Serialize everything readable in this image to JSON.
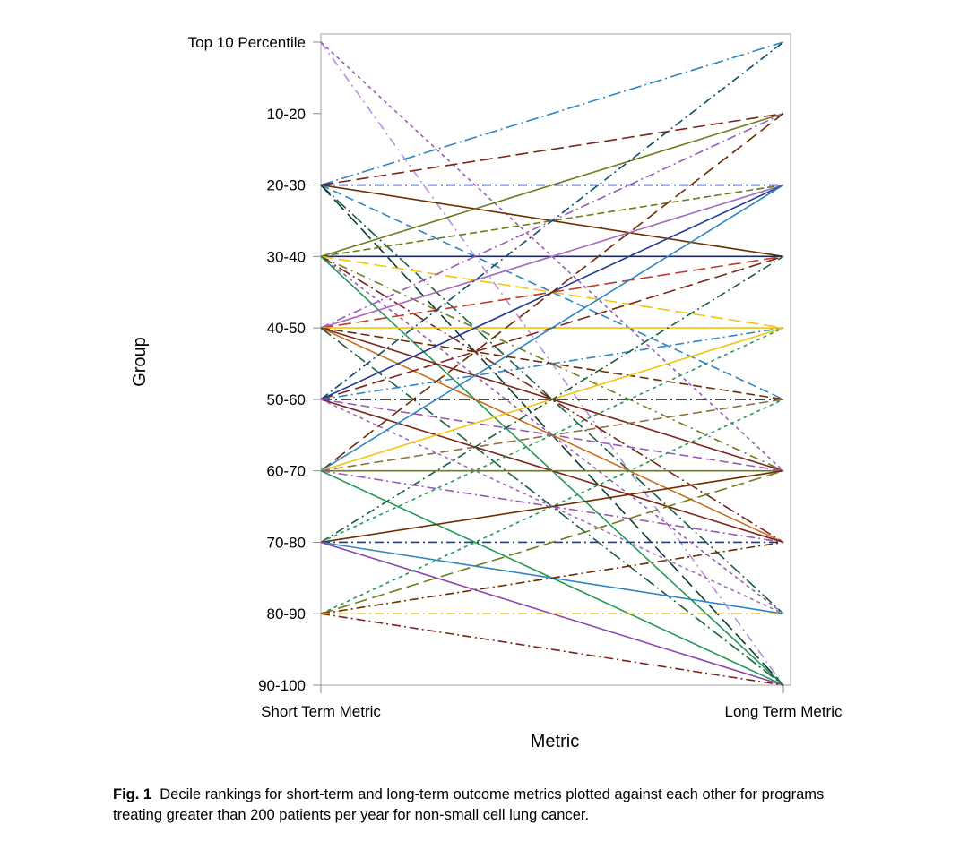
{
  "chart_data": {
    "type": "line",
    "title": "",
    "xlabel": "Metric",
    "ylabel": "Group",
    "x_categories": [
      "Short Term Metric",
      "Long Term Metric"
    ],
    "y_categories": [
      "Top 10 Percentile",
      "10-20",
      "20-30",
      "30-40",
      "40-50",
      "50-60",
      "60-70",
      "70-80",
      "80-90",
      "90-100"
    ],
    "grid": false,
    "legend": "none",
    "note": "Each series is one program: [short-term decile index, long-term decile index], where 0 = Top 10 Percentile and 9 = 90-100.",
    "series": [
      {
        "values": [
          0,
          9
        ],
        "color": "#b98fdc",
        "dash": "10,5,2,5"
      },
      {
        "values": [
          0,
          6
        ],
        "color": "#9b59b6",
        "dash": "4,4"
      },
      {
        "values": [
          2,
          0
        ],
        "color": "#2e86c1",
        "dash": "14,4,2,4"
      },
      {
        "values": [
          2,
          1
        ],
        "color": "#7b241c",
        "dash": "14,6"
      },
      {
        "values": [
          2,
          2
        ],
        "color": "#1b2a6b",
        "dash": "10,4,2,4"
      },
      {
        "values": [
          2,
          3
        ],
        "color": "#6e2c00",
        "dash": ""
      },
      {
        "values": [
          2,
          5
        ],
        "color": "#2e86c1",
        "dash": "10,5"
      },
      {
        "values": [
          2,
          8
        ],
        "color": "#1b5e40",
        "dash": "14,4,2,4"
      },
      {
        "values": [
          2,
          9
        ],
        "color": "#0b3d2e",
        "dash": "16,6"
      },
      {
        "values": [
          3,
          1
        ],
        "color": "#6b7d1a",
        "dash": ""
      },
      {
        "values": [
          3,
          2
        ],
        "color": "#6b7d1a",
        "dash": "8,4"
      },
      {
        "values": [
          3,
          3
        ],
        "color": "#1f2a5a",
        "dash": ""
      },
      {
        "values": [
          3,
          4
        ],
        "color": "#f1c40f",
        "dash": "14,6"
      },
      {
        "values": [
          3,
          6
        ],
        "color": "#6b7d1a",
        "dash": "10,5,2,5"
      },
      {
        "values": [
          3,
          7
        ],
        "color": "#7b241c",
        "dash": "14,4,2,4"
      },
      {
        "values": [
          3,
          8
        ],
        "color": "#9b59b6",
        "dash": "4,4"
      },
      {
        "values": [
          3,
          9
        ],
        "color": "#229954",
        "dash": ""
      },
      {
        "values": [
          4,
          1
        ],
        "color": "#9b59b6",
        "dash": "10,4,2,4"
      },
      {
        "values": [
          4,
          2
        ],
        "color": "#a569bd",
        "dash": ""
      },
      {
        "values": [
          4,
          3
        ],
        "color": "#c0392b",
        "dash": "14,6"
      },
      {
        "values": [
          4,
          4
        ],
        "color": "#f1c40f",
        "dash": ""
      },
      {
        "values": [
          4,
          5
        ],
        "color": "#6e2c00",
        "dash": "10,5"
      },
      {
        "values": [
          4,
          6
        ],
        "color": "#7b241c",
        "dash": ""
      },
      {
        "values": [
          4,
          7
        ],
        "color": "#ca6f1e",
        "dash": ""
      },
      {
        "values": [
          4,
          9
        ],
        "color": "#1b5e40",
        "dash": "14,4,2,4"
      },
      {
        "values": [
          5,
          0
        ],
        "color": "#0b4f6c",
        "dash": "10,4,2,4"
      },
      {
        "values": [
          5,
          2
        ],
        "color": "#1f3a93",
        "dash": ""
      },
      {
        "values": [
          5,
          3
        ],
        "color": "#7b241c",
        "dash": "14,6"
      },
      {
        "values": [
          5,
          4
        ],
        "color": "#2e86c1",
        "dash": "10,4,2,4"
      },
      {
        "values": [
          5,
          5
        ],
        "color": "#111111",
        "dash": "12,4,2,4"
      },
      {
        "values": [
          5,
          6
        ],
        "color": "#9b59b6",
        "dash": "10,5"
      },
      {
        "values": [
          5,
          7
        ],
        "color": "#7b241c",
        "dash": ""
      },
      {
        "values": [
          5,
          8
        ],
        "color": "#a569bd",
        "dash": "4,4"
      },
      {
        "values": [
          6,
          1
        ],
        "color": "#6e2c00",
        "dash": "14,6"
      },
      {
        "values": [
          6,
          2
        ],
        "color": "#2e86c1",
        "dash": ""
      },
      {
        "values": [
          6,
          4
        ],
        "color": "#f1c40f",
        "dash": ""
      },
      {
        "values": [
          6,
          5
        ],
        "color": "#8e6f3e",
        "dash": "10,5"
      },
      {
        "values": [
          6,
          6
        ],
        "color": "#6b7d1a",
        "dash": ""
      },
      {
        "values": [
          6,
          7
        ],
        "color": "#9b59b6",
        "dash": "10,4,2,4"
      },
      {
        "values": [
          6,
          9
        ],
        "color": "#229954",
        "dash": ""
      },
      {
        "values": [
          7,
          3
        ],
        "color": "#1b5e40",
        "dash": "10,4,2,4"
      },
      {
        "values": [
          7,
          4
        ],
        "color": "#229954",
        "dash": "4,4"
      },
      {
        "values": [
          7,
          6
        ],
        "color": "#6e2c00",
        "dash": ""
      },
      {
        "values": [
          7,
          7
        ],
        "color": "#1f3a93",
        "dash": "10,4,2,4"
      },
      {
        "values": [
          7,
          8
        ],
        "color": "#2e86c1",
        "dash": ""
      },
      {
        "values": [
          7,
          9
        ],
        "color": "#8e44ad",
        "dash": ""
      },
      {
        "values": [
          8,
          5
        ],
        "color": "#229954",
        "dash": "4,4"
      },
      {
        "values": [
          8,
          6
        ],
        "color": "#6b7d1a",
        "dash": "14,6"
      },
      {
        "values": [
          8,
          7
        ],
        "color": "#6e2c00",
        "dash": "10,4,2,4"
      },
      {
        "values": [
          8,
          8
        ],
        "color": "#f1c40f",
        "dash": "10,4,2,4"
      },
      {
        "values": [
          8,
          9
        ],
        "color": "#7b241c",
        "dash": "10,4,2,4"
      }
    ]
  },
  "caption": {
    "fig_label": "Fig. 1",
    "text": "Decile rankings for short-term and long-term outcome metrics plotted against each other for programs treating greater than 200 patients per year for non-small cell lung cancer."
  }
}
